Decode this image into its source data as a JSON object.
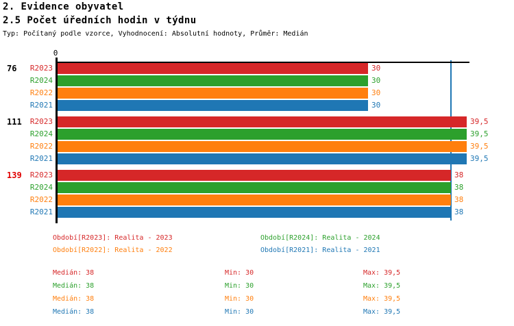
{
  "header": {
    "title": "2. Evidence obyvatel",
    "subtitle": "2.5 Počet úředních hodin v týdnu",
    "type_line": "Typ: Počítaný podle vzorce, Vyhodnocení: Absolutní hodnoty, Průměr: Medián"
  },
  "chart_data": {
    "type": "bar",
    "orientation": "horizontal",
    "title": "2.5 Počet úředních hodin v týdnu",
    "x_axis": {
      "zero_label": "0",
      "xlim": [
        0,
        40
      ],
      "median_line_value": 38,
      "median_line_color": "#1f77b4",
      "axis_color": "#000000"
    },
    "series": [
      {
        "name": "R2023",
        "color": "#d62728"
      },
      {
        "name": "R2024",
        "color": "#2ca02c"
      },
      {
        "name": "R2022",
        "color": "#ff7f0e"
      },
      {
        "name": "R2021",
        "color": "#1f77b4"
      }
    ],
    "groups": [
      {
        "label": "76",
        "label_color": "#000000",
        "values": [
          30,
          30,
          30,
          30
        ],
        "value_labels": [
          "30",
          "30",
          "30",
          "30"
        ]
      },
      {
        "label": "111",
        "label_color": "#000000",
        "values": [
          39.5,
          39.5,
          39.5,
          39.5
        ],
        "value_labels": [
          "39,5",
          "39,5",
          "39,5",
          "39,5"
        ]
      },
      {
        "label": "139",
        "label_color": "#e00000",
        "values": [
          38,
          38,
          38,
          38
        ],
        "value_labels": [
          "38",
          "38",
          "38",
          "38"
        ]
      }
    ]
  },
  "legend": {
    "items": [
      {
        "label": "Období[R2023]: Realita - 2023",
        "color": "#d62728"
      },
      {
        "label": "Období[R2024]: Realita - 2024",
        "color": "#2ca02c"
      },
      {
        "label": "Období[R2022]: Realita - 2022",
        "color": "#ff7f0e"
      },
      {
        "label": "Období[R2021]: Realita - 2021",
        "color": "#1f77b4"
      }
    ]
  },
  "stats": {
    "rows": [
      {
        "color": "#d62728",
        "cells": [
          "Medián: 38",
          "Min: 30",
          "Max: 39,5"
        ]
      },
      {
        "color": "#2ca02c",
        "cells": [
          "Medián: 38",
          "Min: 30",
          "Max: 39,5"
        ]
      },
      {
        "color": "#ff7f0e",
        "cells": [
          "Medián: 38",
          "Min: 30",
          "Max: 39,5"
        ]
      },
      {
        "color": "#1f77b4",
        "cells": [
          "Medián: 38",
          "Min: 30",
          "Max: 39,5"
        ]
      }
    ]
  }
}
